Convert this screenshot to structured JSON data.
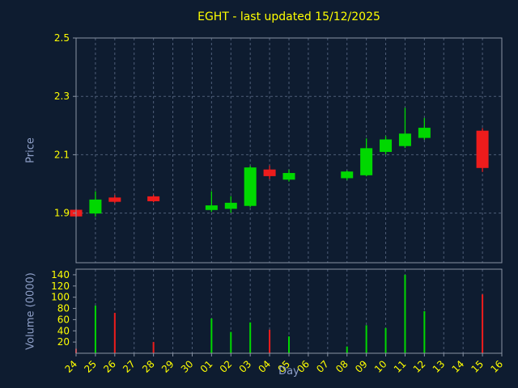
{
  "colors": {
    "background": "#0e1c30",
    "grid": "#4e5e78",
    "spine": "#8b95a5",
    "tick": "#ffff00",
    "axis_label": "#8fa0c8",
    "up": "#00d800",
    "down": "#ee1c1c"
  },
  "chart_data": {
    "type": "candlestick",
    "title": "EGHT - last updated 15/12/2025",
    "xlabel": "Day",
    "price": {
      "ylabel": "Price",
      "ylim": [
        1.73,
        2.5
      ],
      "yticks": [
        1.9,
        2.1,
        2.3,
        2.5
      ]
    },
    "volume": {
      "ylabel": "Volume (0000)",
      "ylim": [
        0,
        150
      ],
      "yticks": [
        20,
        40,
        60,
        80,
        100,
        120,
        140
      ]
    },
    "grid": "dashed",
    "days": [
      "24",
      "25",
      "26",
      "27",
      "28",
      "29",
      "30",
      "01",
      "02",
      "03",
      "04",
      "05",
      "06",
      "07",
      "08",
      "09",
      "10",
      "11",
      "12",
      "13",
      "14",
      "15",
      "16"
    ],
    "series": [
      {
        "day": "24",
        "open": 1.91,
        "high": 1.915,
        "low": 1.885,
        "close": 1.89,
        "volume": 8
      },
      {
        "day": "25",
        "open": 1.9,
        "high": 1.975,
        "low": 1.888,
        "close": 1.945,
        "volume": 85
      },
      {
        "day": "26",
        "open": 1.952,
        "high": 1.962,
        "low": 1.934,
        "close": 1.94,
        "volume": 72
      },
      {
        "day": "27"
      },
      {
        "day": "28",
        "open": 1.956,
        "high": 1.963,
        "low": 1.937,
        "close": 1.942,
        "volume": 20
      },
      {
        "day": "29"
      },
      {
        "day": "30"
      },
      {
        "day": "01",
        "open": 1.912,
        "high": 1.975,
        "low": 1.904,
        "close": 1.925,
        "volume": 62
      },
      {
        "day": "02",
        "open": 1.916,
        "high": 1.958,
        "low": 1.901,
        "close": 1.934,
        "volume": 38
      },
      {
        "day": "03",
        "open": 1.926,
        "high": 2.062,
        "low": 1.92,
        "close": 2.055,
        "volume": 55
      },
      {
        "day": "04",
        "open": 2.048,
        "high": 2.063,
        "low": 2.017,
        "close": 2.028,
        "volume": 42
      },
      {
        "day": "05",
        "open": 2.016,
        "high": 2.049,
        "low": 2.008,
        "close": 2.036,
        "volume": 30
      },
      {
        "day": "06"
      },
      {
        "day": "07"
      },
      {
        "day": "08",
        "open": 2.021,
        "high": 2.046,
        "low": 2.013,
        "close": 2.041,
        "volume": 12
      },
      {
        "day": "09",
        "open": 2.031,
        "high": 2.156,
        "low": 2.026,
        "close": 2.121,
        "volume": 50
      },
      {
        "day": "10",
        "open": 2.111,
        "high": 2.164,
        "low": 2.101,
        "close": 2.151,
        "volume": 45
      },
      {
        "day": "11",
        "open": 2.131,
        "high": 2.261,
        "low": 2.123,
        "close": 2.171,
        "volume": 140
      },
      {
        "day": "12",
        "open": 2.159,
        "high": 2.226,
        "low": 2.151,
        "close": 2.191,
        "volume": 75
      },
      {
        "day": "13"
      },
      {
        "day": "14"
      },
      {
        "day": "15",
        "open": 2.181,
        "high": 2.191,
        "low": 2.041,
        "close": 2.056,
        "volume": 105
      },
      {
        "day": "16"
      }
    ]
  }
}
